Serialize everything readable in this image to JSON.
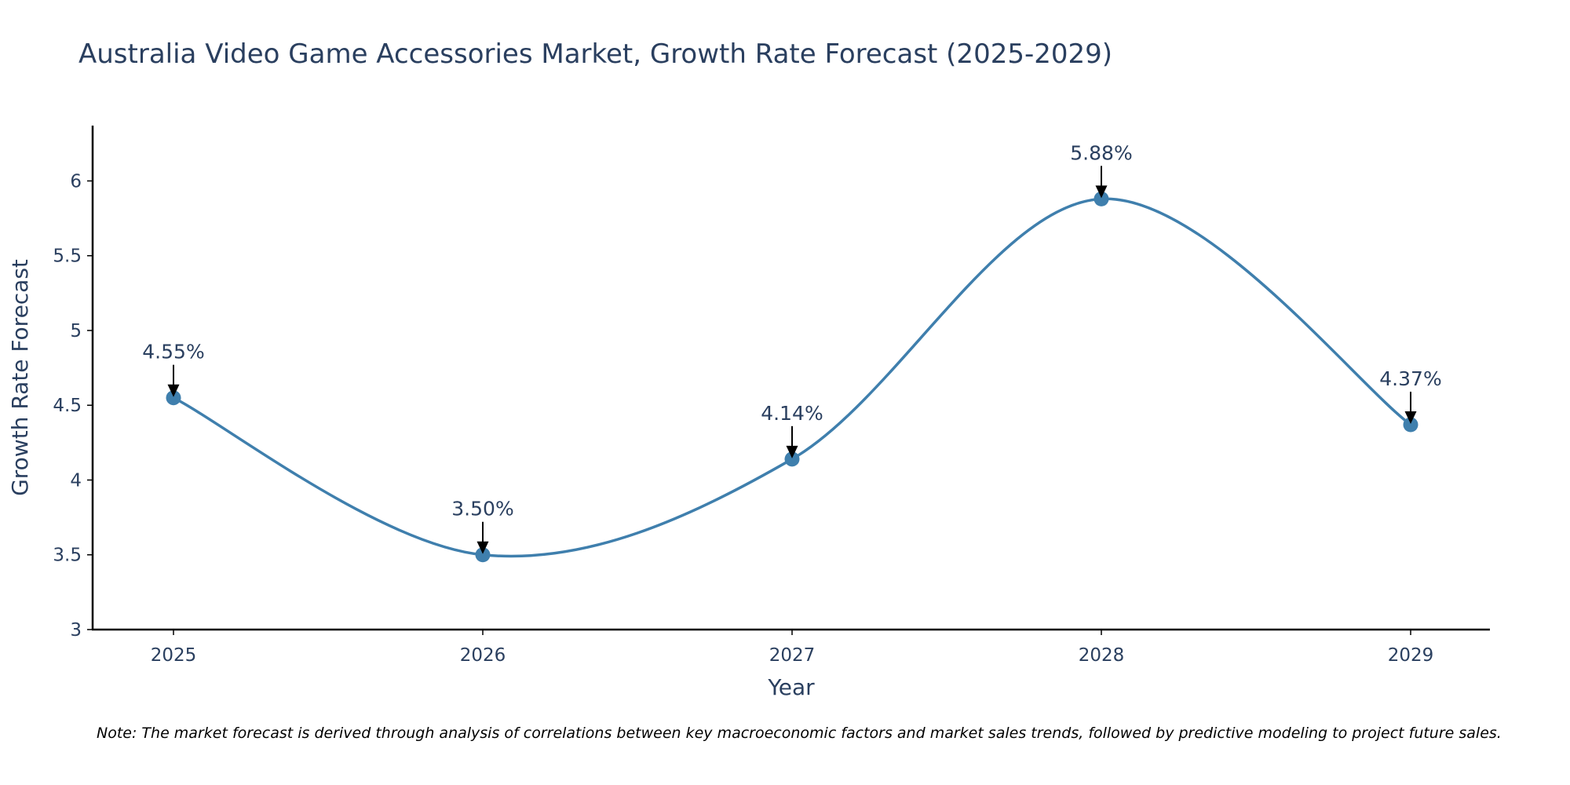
{
  "colors": {
    "line": "#3f7fad",
    "marker": "#3f7fad",
    "axis": "#000000",
    "arrow": "#000000",
    "text": "#2a3f5f"
  },
  "chart_data": {
    "type": "line",
    "title": "Australia Video Game Accessories Market, Growth Rate Forecast (2025-2029)",
    "xlabel": "Year",
    "ylabel": "Growth Rate Forecast",
    "categories": [
      "2025",
      "2026",
      "2027",
      "2028",
      "2029"
    ],
    "values": [
      4.55,
      3.5,
      4.14,
      5.88,
      4.37
    ],
    "data_labels": [
      "4.55%",
      "3.50%",
      "4.14%",
      "5.88%",
      "4.37%"
    ],
    "ylim": [
      3,
      6.37
    ],
    "y_ticks": [
      3,
      3.5,
      4,
      4.5,
      5,
      5.5,
      6
    ],
    "y_tick_labels": [
      "3",
      "3.5",
      "4",
      "4.5",
      "5",
      "5.5",
      "6"
    ],
    "line_shape": "spline",
    "grid": false,
    "legend": false
  },
  "note": "Note: The market forecast is derived through analysis of correlations between key macroeconomic factors and market sales trends, followed by predictive modeling to project future sales."
}
